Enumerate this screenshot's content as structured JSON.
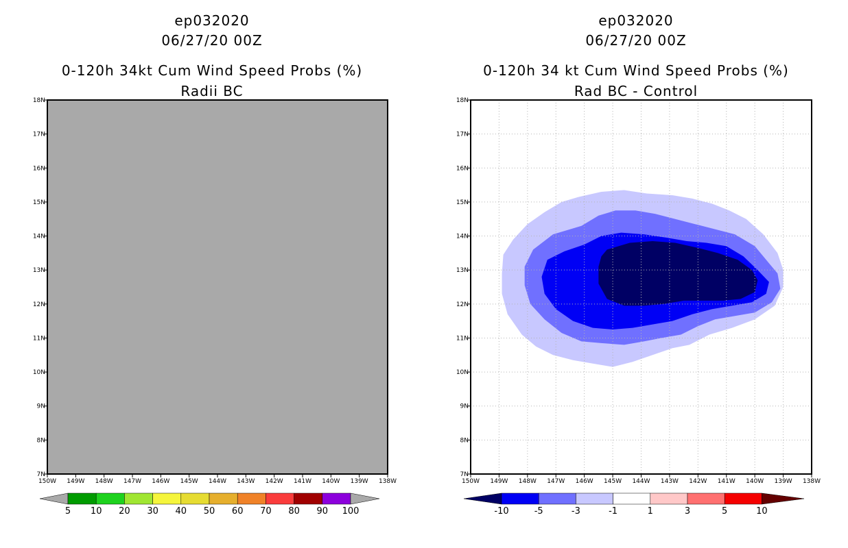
{
  "colors": {
    "no_data": "#a9a9a9",
    "grid": "#b4b4b4",
    "frame": "#000000"
  },
  "chart_data": [
    {
      "type": "heatmap",
      "title_lines": [
        "ep032020",
        "06/27/20 00Z",
        "0-120h 34kt Cum Wind Speed Probs (%)",
        "Radii BC"
      ],
      "x_ticks": [
        "150W",
        "149W",
        "148W",
        "147W",
        "146W",
        "145W",
        "144W",
        "143W",
        "142W",
        "141W",
        "140W",
        "139W",
        "138W"
      ],
      "y_ticks": [
        "7N",
        "8N",
        "9N",
        "10N",
        "11N",
        "12N",
        "13N",
        "14N",
        "15N",
        "16N",
        "17N",
        "18N"
      ],
      "xlim": [
        -150,
        -138
      ],
      "ylim": [
        7,
        18
      ],
      "field": "undefined (uniform gray fill)",
      "colorbar": {
        "labels": [
          "5",
          "10",
          "20",
          "30",
          "40",
          "50",
          "60",
          "70",
          "80",
          "90",
          "100"
        ],
        "colors": [
          "#009b00",
          "#1ed21e",
          "#a0e632",
          "#f5f53c",
          "#e6dc32",
          "#e6af2d",
          "#f08228",
          "#fa3c3c",
          "#a00000",
          "#8c00dc"
        ],
        "under": "#a9a9a9",
        "over": "#a9a9a9"
      }
    },
    {
      "type": "heatmap",
      "title_lines": [
        "ep032020",
        "06/27/20 00Z",
        "0-120h 34 kt Cum Wind Speed Probs (%)",
        "Rad BC - Control"
      ],
      "x_ticks": [
        "150W",
        "149W",
        "148W",
        "147W",
        "146W",
        "145W",
        "144W",
        "143W",
        "142W",
        "141W",
        "140W",
        "139W",
        "138W"
      ],
      "y_ticks": [
        "7N",
        "8N",
        "9N",
        "10N",
        "11N",
        "12N",
        "13N",
        "14N",
        "15N",
        "16N",
        "17N",
        "18N"
      ],
      "xlim": [
        -150,
        -138
      ],
      "ylim": [
        7,
        18
      ],
      "contours": [
        {
          "level": "-3 to -1",
          "color": "#c8c8ff",
          "points": [
            [
              -146.2,
              15.15
            ],
            [
              -145.4,
              15.3
            ],
            [
              -144.6,
              15.35
            ],
            [
              -143.8,
              15.25
            ],
            [
              -142.9,
              15.2
            ],
            [
              -142.2,
              15.1
            ],
            [
              -141.5,
              14.95
            ],
            [
              -140.9,
              14.75
            ],
            [
              -140.3,
              14.5
            ],
            [
              -139.7,
              14.05
            ],
            [
              -139.2,
              13.5
            ],
            [
              -139.0,
              13.0
            ],
            [
              -139.0,
              12.5
            ],
            [
              -139.3,
              11.95
            ],
            [
              -140.0,
              11.55
            ],
            [
              -140.8,
              11.3
            ],
            [
              -141.6,
              11.1
            ],
            [
              -142.3,
              10.8
            ],
            [
              -142.9,
              10.7
            ],
            [
              -143.6,
              10.5
            ],
            [
              -144.3,
              10.3
            ],
            [
              -145.0,
              10.15
            ],
            [
              -145.7,
              10.25
            ],
            [
              -146.4,
              10.35
            ],
            [
              -147.1,
              10.5
            ],
            [
              -147.7,
              10.75
            ],
            [
              -148.2,
              11.1
            ],
            [
              -148.7,
              11.7
            ],
            [
              -148.9,
              12.3
            ],
            [
              -148.9,
              12.9
            ],
            [
              -148.85,
              13.45
            ],
            [
              -148.5,
              13.9
            ],
            [
              -148.0,
              14.35
            ],
            [
              -147.4,
              14.7
            ],
            [
              -146.8,
              15.0
            ]
          ]
        },
        {
          "level": "-5 to -3",
          "color": "#7070ff",
          "points": [
            [
              -146.1,
              14.3
            ],
            [
              -145.5,
              14.6
            ],
            [
              -144.9,
              14.75
            ],
            [
              -144.2,
              14.75
            ],
            [
              -143.5,
              14.65
            ],
            [
              -142.8,
              14.5
            ],
            [
              -142.1,
              14.35
            ],
            [
              -141.4,
              14.2
            ],
            [
              -140.7,
              14.05
            ],
            [
              -140.0,
              13.7
            ],
            [
              -139.6,
              13.3
            ],
            [
              -139.2,
              12.9
            ],
            [
              -139.1,
              12.45
            ],
            [
              -139.4,
              12.05
            ],
            [
              -140.0,
              11.75
            ],
            [
              -140.7,
              11.65
            ],
            [
              -141.4,
              11.55
            ],
            [
              -142.0,
              11.35
            ],
            [
              -142.6,
              11.1
            ],
            [
              -143.3,
              11.0
            ],
            [
              -143.9,
              10.9
            ],
            [
              -144.6,
              10.8
            ],
            [
              -145.4,
              10.85
            ],
            [
              -146.1,
              10.9
            ],
            [
              -146.8,
              11.15
            ],
            [
              -147.4,
              11.55
            ],
            [
              -147.9,
              12.0
            ],
            [
              -148.1,
              12.55
            ],
            [
              -148.1,
              13.1
            ],
            [
              -147.8,
              13.6
            ],
            [
              -147.1,
              14.05
            ]
          ]
        },
        {
          "level": "-10 to -5",
          "color": "#0000f5",
          "points": [
            [
              -146.0,
              13.75
            ],
            [
              -145.4,
              14.0
            ],
            [
              -144.7,
              14.1
            ],
            [
              -143.9,
              14.05
            ],
            [
              -143.1,
              13.95
            ],
            [
              -142.4,
              13.85
            ],
            [
              -141.7,
              13.8
            ],
            [
              -141.0,
              13.7
            ],
            [
              -140.4,
              13.4
            ],
            [
              -139.9,
              13.0
            ],
            [
              -139.5,
              12.65
            ],
            [
              -139.6,
              12.3
            ],
            [
              -140.1,
              12.05
            ],
            [
              -140.8,
              11.95
            ],
            [
              -141.5,
              11.85
            ],
            [
              -142.2,
              11.7
            ],
            [
              -142.9,
              11.5
            ],
            [
              -143.6,
              11.4
            ],
            [
              -144.3,
              11.3
            ],
            [
              -145.0,
              11.25
            ],
            [
              -145.7,
              11.3
            ],
            [
              -146.4,
              11.5
            ],
            [
              -147.0,
              11.85
            ],
            [
              -147.4,
              12.3
            ],
            [
              -147.5,
              12.8
            ],
            [
              -147.3,
              13.3
            ],
            [
              -146.7,
              13.55
            ]
          ]
        },
        {
          "level": "< -10",
          "color": "#000064",
          "points": [
            [
              -145.2,
              13.6
            ],
            [
              -144.4,
              13.8
            ],
            [
              -143.6,
              13.85
            ],
            [
              -142.8,
              13.8
            ],
            [
              -142.0,
              13.65
            ],
            [
              -141.3,
              13.5
            ],
            [
              -140.6,
              13.3
            ],
            [
              -140.1,
              13.0
            ],
            [
              -139.9,
              12.7
            ],
            [
              -140.0,
              12.35
            ],
            [
              -140.5,
              12.15
            ],
            [
              -141.1,
              12.1
            ],
            [
              -141.8,
              12.1
            ],
            [
              -142.5,
              12.1
            ],
            [
              -143.2,
              12.0
            ],
            [
              -143.9,
              11.95
            ],
            [
              -144.6,
              11.95
            ],
            [
              -145.2,
              12.15
            ],
            [
              -145.5,
              12.6
            ],
            [
              -145.5,
              13.1
            ],
            [
              -145.4,
              13.4
            ]
          ]
        }
      ],
      "colorbar": {
        "labels": [
          "-10",
          "-5",
          "-3",
          "-1",
          "1",
          "3",
          "5",
          "10"
        ],
        "colors": [
          "#0000f5",
          "#7070ff",
          "#c8c8ff",
          "#ffffff",
          "#ffc8c8",
          "#ff7070",
          "#f50000"
        ],
        "under": "#000064",
        "over": "#640000"
      }
    }
  ]
}
